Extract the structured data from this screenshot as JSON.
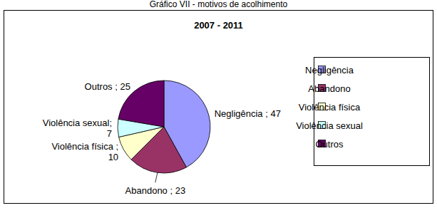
{
  "chart_data": {
    "type": "pie",
    "caption": "Gráfico VII - motivos de acolhimento",
    "title": "2007 - 2011",
    "categories": [
      "Negligência",
      "Abandono",
      "Violência física",
      "Violência sexual",
      "Outros"
    ],
    "values": [
      47,
      23,
      10,
      7,
      25
    ],
    "value_labels": [
      "Negligência ; 47",
      "Abandono ; 23",
      "Violência física ; 10",
      "Violência sexual; 7",
      "Outros ; 25"
    ],
    "colors": [
      "#9999ff",
      "#993366",
      "#ffffcc",
      "#ccffff",
      "#660066"
    ],
    "data_labels": true,
    "legend": "right"
  }
}
